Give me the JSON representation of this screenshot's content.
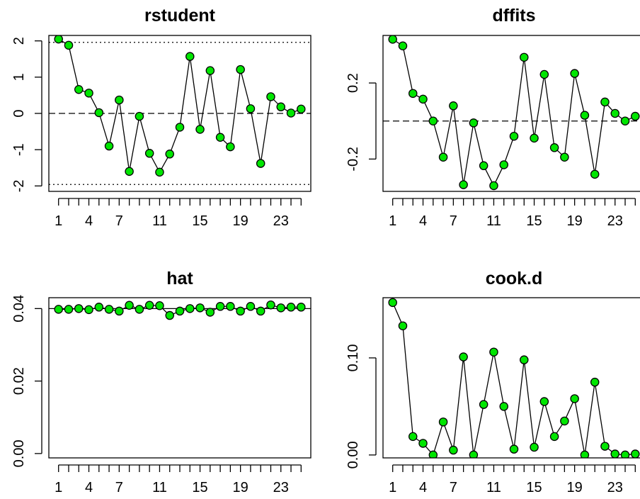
{
  "chart_data": [
    {
      "type": "line",
      "title": "rstudent",
      "x": [
        1,
        2,
        3,
        4,
        5,
        6,
        7,
        8,
        9,
        10,
        11,
        12,
        13,
        14,
        15,
        16,
        17,
        18,
        19,
        20,
        21,
        22,
        23,
        24,
        25
      ],
      "values": [
        2.05,
        1.88,
        0.66,
        0.56,
        0.02,
        -0.9,
        0.37,
        -1.6,
        -0.08,
        -1.1,
        -1.62,
        -1.12,
        -0.38,
        1.57,
        -0.44,
        1.18,
        -0.66,
        -0.92,
        1.21,
        0.13,
        -1.38,
        0.46,
        0.18,
        0.01,
        0.12
      ],
      "x_tick_labels": [
        "1",
        "4",
        "7",
        "11",
        "15",
        "19",
        "23"
      ],
      "y_tick_labels": [
        "-2",
        "-1",
        "0",
        "1",
        "2"
      ],
      "ylim": [
        -2.15,
        2.15
      ],
      "reference_lines": [
        {
          "value": 0,
          "style": "dashed"
        },
        {
          "value": 1.96,
          "style": "dotted"
        },
        {
          "value": -1.96,
          "style": "dotted"
        }
      ]
    },
    {
      "type": "line",
      "title": "dffits",
      "x": [
        1,
        2,
        3,
        4,
        5,
        6,
        7,
        8,
        9,
        10,
        11,
        12,
        13,
        14,
        15,
        16,
        17,
        18,
        19,
        20,
        21,
        22,
        23,
        24,
        25
      ],
      "values": [
        0.43,
        0.395,
        0.145,
        0.115,
        0.0,
        -0.19,
        0.08,
        -0.335,
        -0.01,
        -0.235,
        -0.34,
        -0.23,
        -0.08,
        0.335,
        -0.09,
        0.245,
        -0.14,
        -0.19,
        0.25,
        0.03,
        -0.28,
        0.1,
        0.04,
        0.0,
        0.025
      ],
      "x_tick_labels": [
        "1",
        "4",
        "7",
        "11",
        "15",
        "19",
        "23"
      ],
      "y_tick_labels": [
        "-0.2",
        "0.2"
      ],
      "ylim": [
        -0.37,
        0.45
      ],
      "reference_lines": [
        {
          "value": 0,
          "style": "dashed"
        }
      ]
    },
    {
      "type": "line",
      "title": "hat",
      "x": [
        1,
        2,
        3,
        4,
        5,
        6,
        7,
        8,
        9,
        10,
        11,
        12,
        13,
        14,
        15,
        16,
        17,
        18,
        19,
        20,
        21,
        22,
        23,
        24,
        25
      ],
      "values": [
        0.0398,
        0.0398,
        0.04,
        0.0397,
        0.0404,
        0.0398,
        0.0393,
        0.0409,
        0.0398,
        0.0409,
        0.0408,
        0.0381,
        0.0393,
        0.04,
        0.0402,
        0.039,
        0.0406,
        0.0406,
        0.0393,
        0.0406,
        0.0393,
        0.041,
        0.0402,
        0.0404,
        0.0404
      ],
      "x_tick_labels": [
        "1",
        "4",
        "7",
        "11",
        "15",
        "19",
        "23"
      ],
      "y_tick_labels": [
        "0.00",
        "0.02",
        "0.04"
      ],
      "ylim": [
        -0.0012,
        0.043
      ],
      "reference_lines": [
        {
          "value": 0.04,
          "style": "solid"
        }
      ]
    },
    {
      "type": "line",
      "title": "cook.d",
      "x": [
        1,
        2,
        3,
        4,
        5,
        6,
        7,
        8,
        9,
        10,
        11,
        12,
        13,
        14,
        15,
        16,
        17,
        18,
        19,
        20,
        21,
        22,
        23,
        24,
        25
      ],
      "values": [
        0.157,
        0.133,
        0.019,
        0.012,
        0.0,
        0.034,
        0.005,
        0.101,
        0.0,
        0.052,
        0.106,
        0.05,
        0.006,
        0.098,
        0.008,
        0.055,
        0.019,
        0.035,
        0.058,
        0.0,
        0.075,
        0.009,
        0.001,
        0.0,
        0.001
      ],
      "x_tick_labels": [
        "1",
        "4",
        "7",
        "11",
        "15",
        "19",
        "23"
      ],
      "y_tick_labels": [
        "0.00",
        "0.10"
      ],
      "ylim": [
        -0.003,
        0.162
      ],
      "reference_lines": []
    }
  ],
  "colors": {
    "point_fill": "#00e600",
    "line": "#000000"
  }
}
